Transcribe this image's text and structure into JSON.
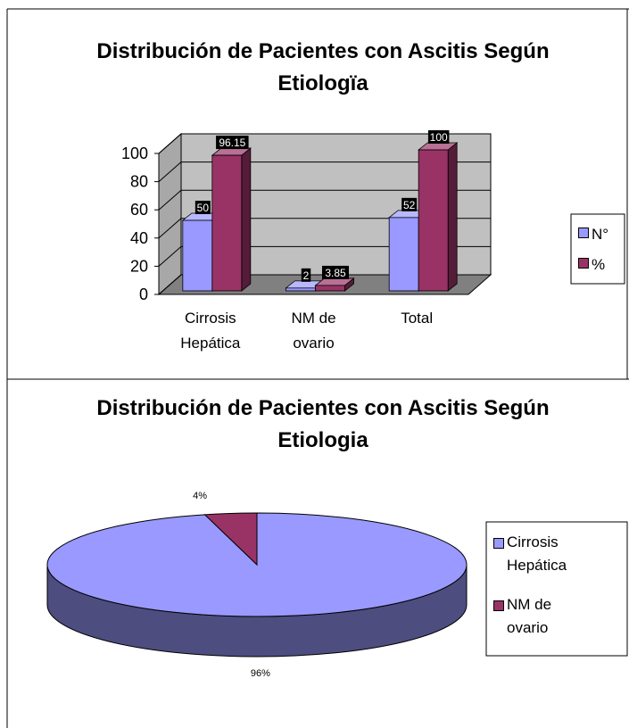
{
  "chart_data": [
    {
      "type": "bar3d",
      "title": "Distribución de Pacientes con Ascitis Según Etiologïa",
      "categories": [
        "Cirrosis Hepática",
        "NM de ovario",
        "Total"
      ],
      "series": [
        {
          "name": "N°",
          "color": "#9999ff",
          "values": [
            50,
            2,
            52
          ]
        },
        {
          "name": "%",
          "color": "#993366",
          "values": [
            96.15,
            3.85,
            100
          ]
        }
      ],
      "ylim": [
        0,
        100
      ],
      "yticks": [
        0,
        20,
        40,
        60,
        80,
        100
      ],
      "grid": true,
      "legend": "right"
    },
    {
      "type": "pie3d",
      "title": "Distribución de Pacientes con Ascitis Según Etiologia",
      "categories": [
        "Cirrosis Hepática",
        "NM de ovario"
      ],
      "values": [
        96,
        4
      ],
      "value_labels": [
        "96%",
        "4%"
      ],
      "colors": [
        "#9999ff",
        "#993366"
      ],
      "legend": "right"
    }
  ]
}
